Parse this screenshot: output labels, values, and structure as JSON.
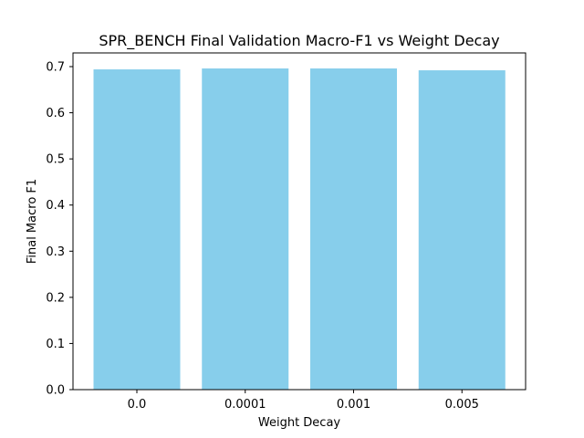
{
  "chart_data": {
    "type": "bar",
    "title": "SPR_BENCH Final Validation Macro-F1 vs Weight Decay",
    "xlabel": "Weight Decay",
    "ylabel": "Final Macro F1",
    "categories": [
      "0.0",
      "0.0001",
      "0.001",
      "0.005"
    ],
    "values": [
      0.694,
      0.696,
      0.696,
      0.692
    ],
    "ylim": [
      0,
      0.7
    ],
    "yticks": [
      "0.0",
      "0.1",
      "0.2",
      "0.3",
      "0.4",
      "0.5",
      "0.6",
      "0.7"
    ],
    "bar_color": "#87ceeb",
    "grid": false,
    "legend": "none"
  }
}
